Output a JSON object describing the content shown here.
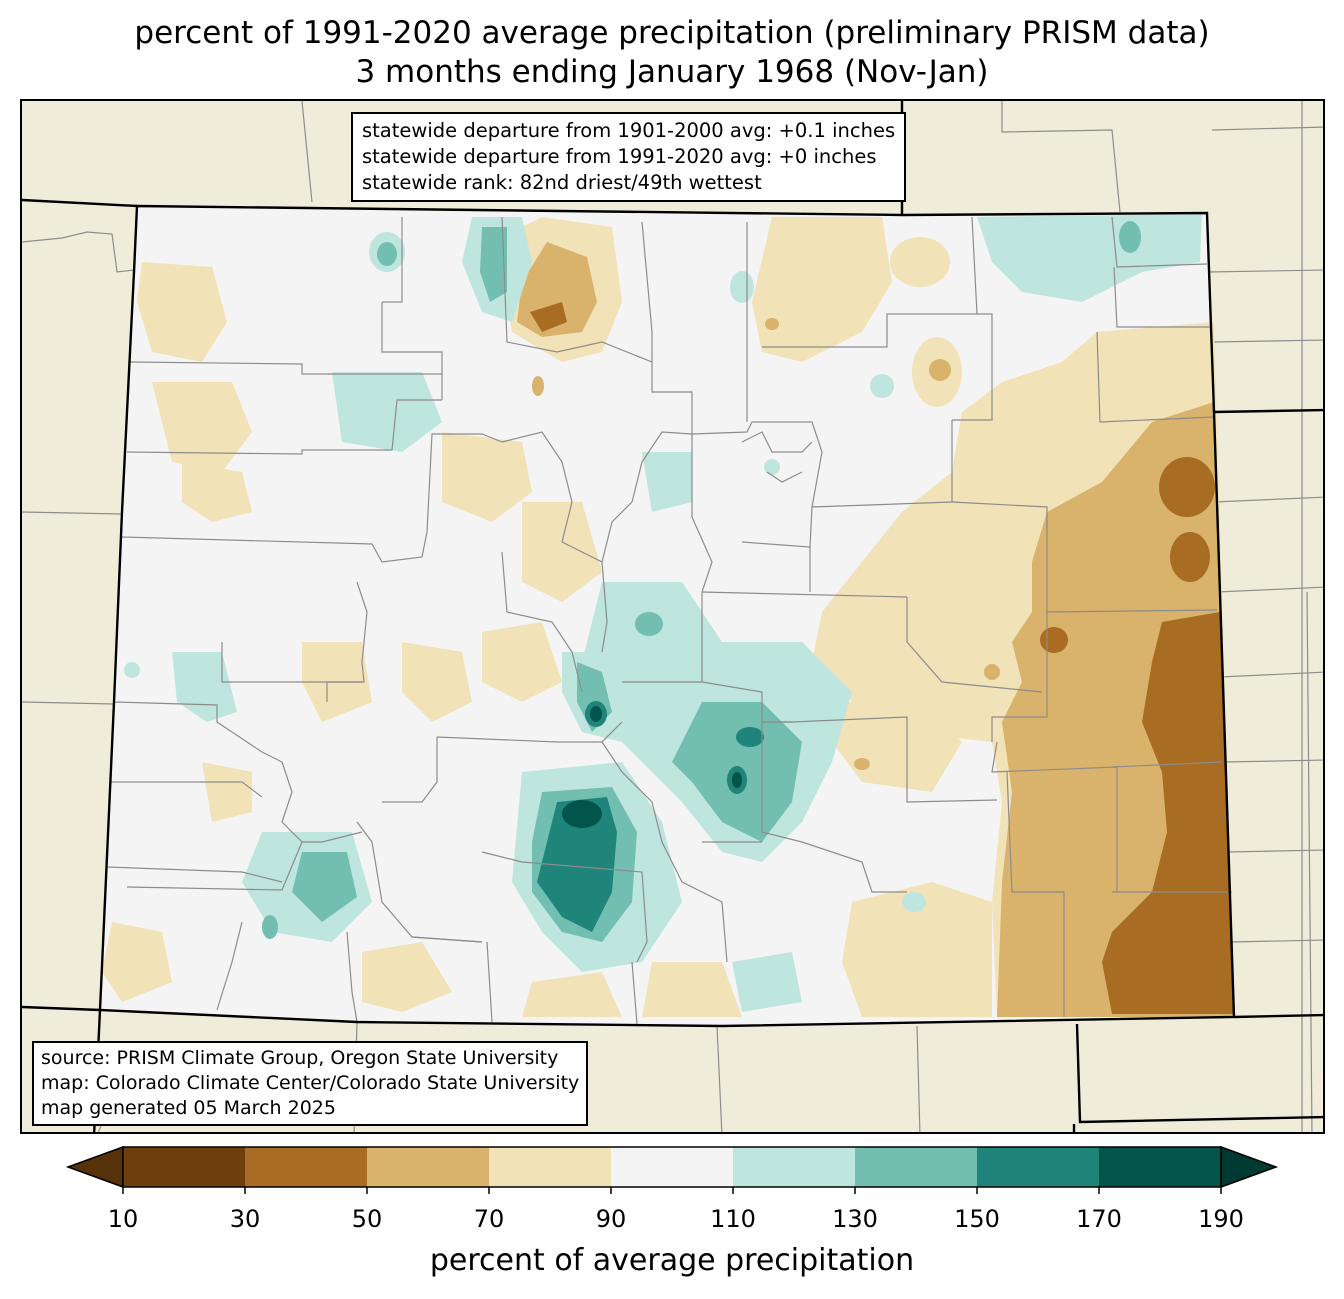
{
  "title": {
    "line1": "percent of 1991-2020 average precipitation (preliminary PRISM data)",
    "line2": "3 months ending January 1968 (Nov-Jan)"
  },
  "stats": {
    "line1": "statewide departure from 1901-2000 avg: +0.1 inches",
    "line2": "statewide departure from 1991-2020 avg: +0 inches",
    "line3": "statewide rank: 82nd driest/49th wettest"
  },
  "source": {
    "line1": "source: PRISM Climate Group, Oregon State University",
    "line2": "map: Colorado Climate Center/Colorado State University",
    "line3": "map generated 05 March 2025"
  },
  "colorbar": {
    "label": "percent of average precipitation",
    "ticks": [
      "10",
      "30",
      "50",
      "70",
      "90",
      "110",
      "130",
      "150",
      "170",
      "190"
    ],
    "colors": [
      "#6f3f0b",
      "#a86c22",
      "#d9b26c",
      "#f2e2b8",
      "#f3f4f3",
      "#bfe5df",
      "#72bfb1",
      "#1f857b",
      "#03544a"
    ],
    "under_color": "#573209",
    "over_color": "#013a32"
  },
  "map": {
    "background": "#efedd9",
    "state_fill": "#f3f4f3",
    "county_line": "#8c8c8c",
    "state_line": "#000000"
  }
}
